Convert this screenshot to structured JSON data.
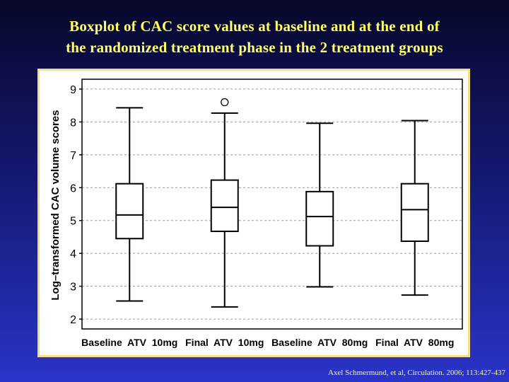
{
  "slide": {
    "title_line1": "Boxplot of CAC score values at baseline and at the end of",
    "title_line2": "the randomized treatment phase in the 2 treatment groups",
    "citation": "Axel Schmermund, et al, Circulation.  2006; 113:427-437",
    "title_color": "#ffff66",
    "background_top": "#07082a",
    "background_bottom": "#2a34c8"
  },
  "chart_data": {
    "type": "boxplot",
    "title": "",
    "xlabel": "",
    "ylabel": "Log–transformed CAC volume scores",
    "ylim": [
      1.7,
      9.3
    ],
    "yticks": [
      2,
      3,
      4,
      5,
      6,
      7,
      8,
      9
    ],
    "grid": "horizontal dashed",
    "categories": [
      "Baseline  ATV  10mg",
      "Final  ATV  10mg",
      "Baseline  ATV  80mg",
      "Final  ATV  80mg"
    ],
    "boxes": [
      {
        "whisker_low": 2.55,
        "q1": 4.45,
        "median": 5.17,
        "q3": 6.12,
        "whisker_high": 8.43,
        "outliers": []
      },
      {
        "whisker_low": 2.37,
        "q1": 4.67,
        "median": 5.4,
        "q3": 6.23,
        "whisker_high": 8.27,
        "outliers": [
          8.6
        ]
      },
      {
        "whisker_low": 2.98,
        "q1": 4.23,
        "median": 5.12,
        "q3": 5.88,
        "whisker_high": 7.96,
        "outliers": []
      },
      {
        "whisker_low": 2.73,
        "q1": 4.37,
        "median": 5.33,
        "q3": 6.12,
        "whisker_high": 8.04,
        "outliers": []
      }
    ]
  }
}
